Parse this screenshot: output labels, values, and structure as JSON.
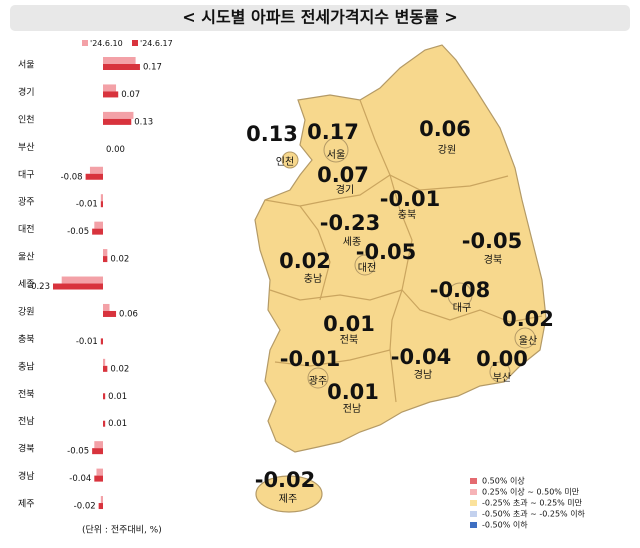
{
  "chart_data": {
    "type": "bar",
    "title": "< 시도별 아파트 전세가격지수 변동률 >",
    "categories": [
      "서울",
      "경기",
      "인천",
      "부산",
      "대구",
      "광주",
      "대전",
      "울산",
      "세종",
      "강원",
      "충북",
      "충남",
      "전북",
      "전남",
      "경북",
      "경남",
      "제주"
    ],
    "series": [
      {
        "name": "'24.6.10",
        "color": "#f3a1a7",
        "values": [
          0.15,
          0.06,
          0.14,
          0.0,
          -0.06,
          -0.01,
          -0.04,
          0.02,
          -0.19,
          0.03,
          0.0,
          0.01,
          0.0,
          0.0,
          -0.04,
          -0.03,
          -0.01
        ]
      },
      {
        "name": "'24.6.17",
        "color": "#d8333d",
        "values": [
          0.17,
          0.07,
          0.13,
          0.0,
          -0.08,
          -0.01,
          -0.05,
          0.02,
          -0.23,
          0.06,
          -0.01,
          0.02,
          0.01,
          0.01,
          -0.05,
          -0.04,
          -0.02
        ],
        "value_labels": [
          "0.17",
          "0.07",
          "0.13",
          "0.00",
          "-0.08",
          "-0.01",
          "-0.05",
          "0.02",
          "-0.23",
          "0.06",
          "-0.01",
          "0.02",
          "0.01",
          "0.01",
          "-0.05",
          "-0.04",
          "-0.02"
        ]
      }
    ],
    "unit_note": "(단위 : 전주대비, %)"
  },
  "map": {
    "legend": [
      {
        "label": "0.50% 이상",
        "color": "#e46a70"
      },
      {
        "label": "0.25% 이상 ~ 0.50% 미만",
        "color": "#f6b3b7"
      },
      {
        "label": "-0.25% 초과 ~ 0.25% 미만",
        "color": "#fbe29c"
      },
      {
        "label": "-0.50% 초과 ~ -0.25% 이하",
        "color": "#c3d1ee"
      },
      {
        "label": "-0.50% 이하",
        "color": "#3e6fc2"
      }
    ]
  }
}
